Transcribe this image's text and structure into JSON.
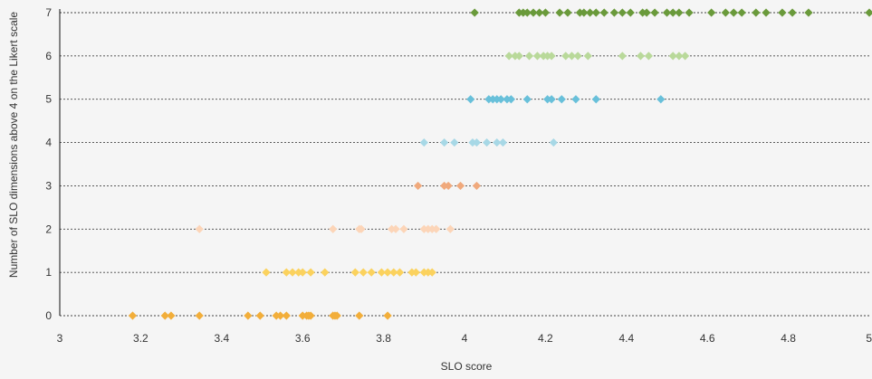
{
  "chart_data": {
    "type": "scatter",
    "xlabel": "SLO score",
    "ylabel": "Number of SLO dimensions above 4 on the Likert scale",
    "xlim": [
      3,
      5
    ],
    "ylim": [
      0,
      7
    ],
    "x_ticks": [
      "3",
      "3.2",
      "3.4",
      "3.6",
      "3.8",
      "4",
      "4.2",
      "4.4",
      "4.6",
      "4.8",
      "5"
    ],
    "y_ticks": [
      "0",
      "1",
      "2",
      "3",
      "4",
      "5",
      "6",
      "7"
    ],
    "grid": "horizontal-dashed",
    "legend": "none",
    "series": [
      {
        "y": 0,
        "color": "#f2ae3a",
        "x": [
          3.18,
          3.26,
          3.275,
          3.345,
          3.465,
          3.495,
          3.535,
          3.545,
          3.56,
          3.6,
          3.61,
          3.615,
          3.62,
          3.675,
          3.68,
          3.685,
          3.74,
          3.81
        ]
      },
      {
        "y": 1,
        "color": "#fbd25e",
        "x": [
          3.51,
          3.56,
          3.575,
          3.59,
          3.6,
          3.62,
          3.655,
          3.73,
          3.75,
          3.77,
          3.795,
          3.81,
          3.825,
          3.84,
          3.87,
          3.88,
          3.9,
          3.91,
          3.92
        ]
      },
      {
        "y": 2,
        "color": "#fcd5b8",
        "x": [
          3.345,
          3.675,
          3.74,
          3.745,
          3.82,
          3.83,
          3.85,
          3.9,
          3.91,
          3.92,
          3.93,
          3.965
        ]
      },
      {
        "y": 3,
        "color": "#f0a97c",
        "x": [
          3.885,
          3.95,
          3.96,
          3.99,
          4.03
        ]
      },
      {
        "y": 4,
        "color": "#a7d8e6",
        "x": [
          3.9,
          3.95,
          3.975,
          4.02,
          4.03,
          4.055,
          4.08,
          4.095,
          4.22
        ]
      },
      {
        "y": 5,
        "color": "#68c0da",
        "x": [
          4.015,
          4.06,
          4.07,
          4.08,
          4.09,
          4.105,
          4.115,
          4.155,
          4.205,
          4.215,
          4.24,
          4.275,
          4.325,
          4.485
        ]
      },
      {
        "y": 6,
        "color": "#b9d99a",
        "x": [
          4.11,
          4.125,
          4.135,
          4.16,
          4.18,
          4.195,
          4.205,
          4.215,
          4.25,
          4.265,
          4.28,
          4.305,
          4.39,
          4.435,
          4.455,
          4.515,
          4.53,
          4.545
        ]
      },
      {
        "y": 7,
        "color": "#6a9a3b",
        "x": [
          4.025,
          4.135,
          4.145,
          4.155,
          4.17,
          4.185,
          4.2,
          4.235,
          4.255,
          4.285,
          4.295,
          4.31,
          4.325,
          4.345,
          4.37,
          4.39,
          4.41,
          4.44,
          4.45,
          4.47,
          4.5,
          4.515,
          4.53,
          4.555,
          4.61,
          4.645,
          4.665,
          4.685,
          4.72,
          4.745,
          4.785,
          4.81,
          4.85,
          5.0
        ]
      }
    ]
  }
}
